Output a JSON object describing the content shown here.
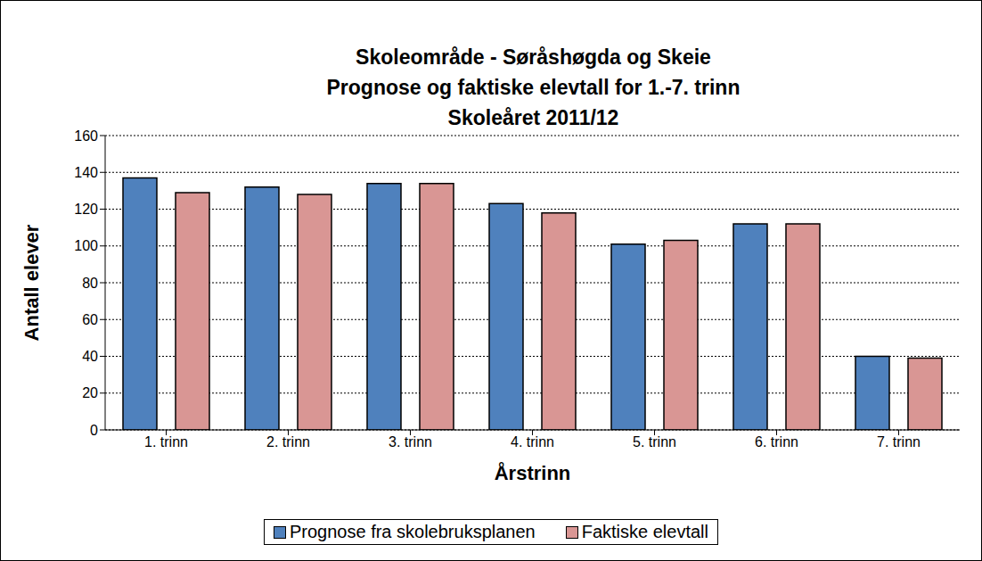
{
  "chart_data": {
    "type": "bar",
    "title": "Skoleområde - Søråshøgda og Skeie\nPrognose og faktiske elevtall for 1.-7. trinn\nSkoleåret 2011/12",
    "x_label": "Årstrinn",
    "y_label": "Antall elever",
    "categories": [
      "1. trinn",
      "2. trinn",
      "3. trinn",
      "4. trinn",
      "5. trinn",
      "6. trinn",
      "7. trinn"
    ],
    "series": [
      {
        "name": "Prognose fra skolebruksplanen",
        "color": "#4f81bd",
        "values": [
          137,
          132,
          134,
          123,
          101,
          112,
          40
        ]
      },
      {
        "name": "Faktiske elevtall",
        "color": "#d99694",
        "values": [
          129,
          128,
          134,
          118,
          103,
          112,
          39
        ]
      }
    ],
    "ylim": [
      0,
      160
    ],
    "yticks": [
      0,
      20,
      40,
      60,
      80,
      100,
      120,
      140,
      160
    ],
    "grid": true,
    "legend": "bottom"
  }
}
